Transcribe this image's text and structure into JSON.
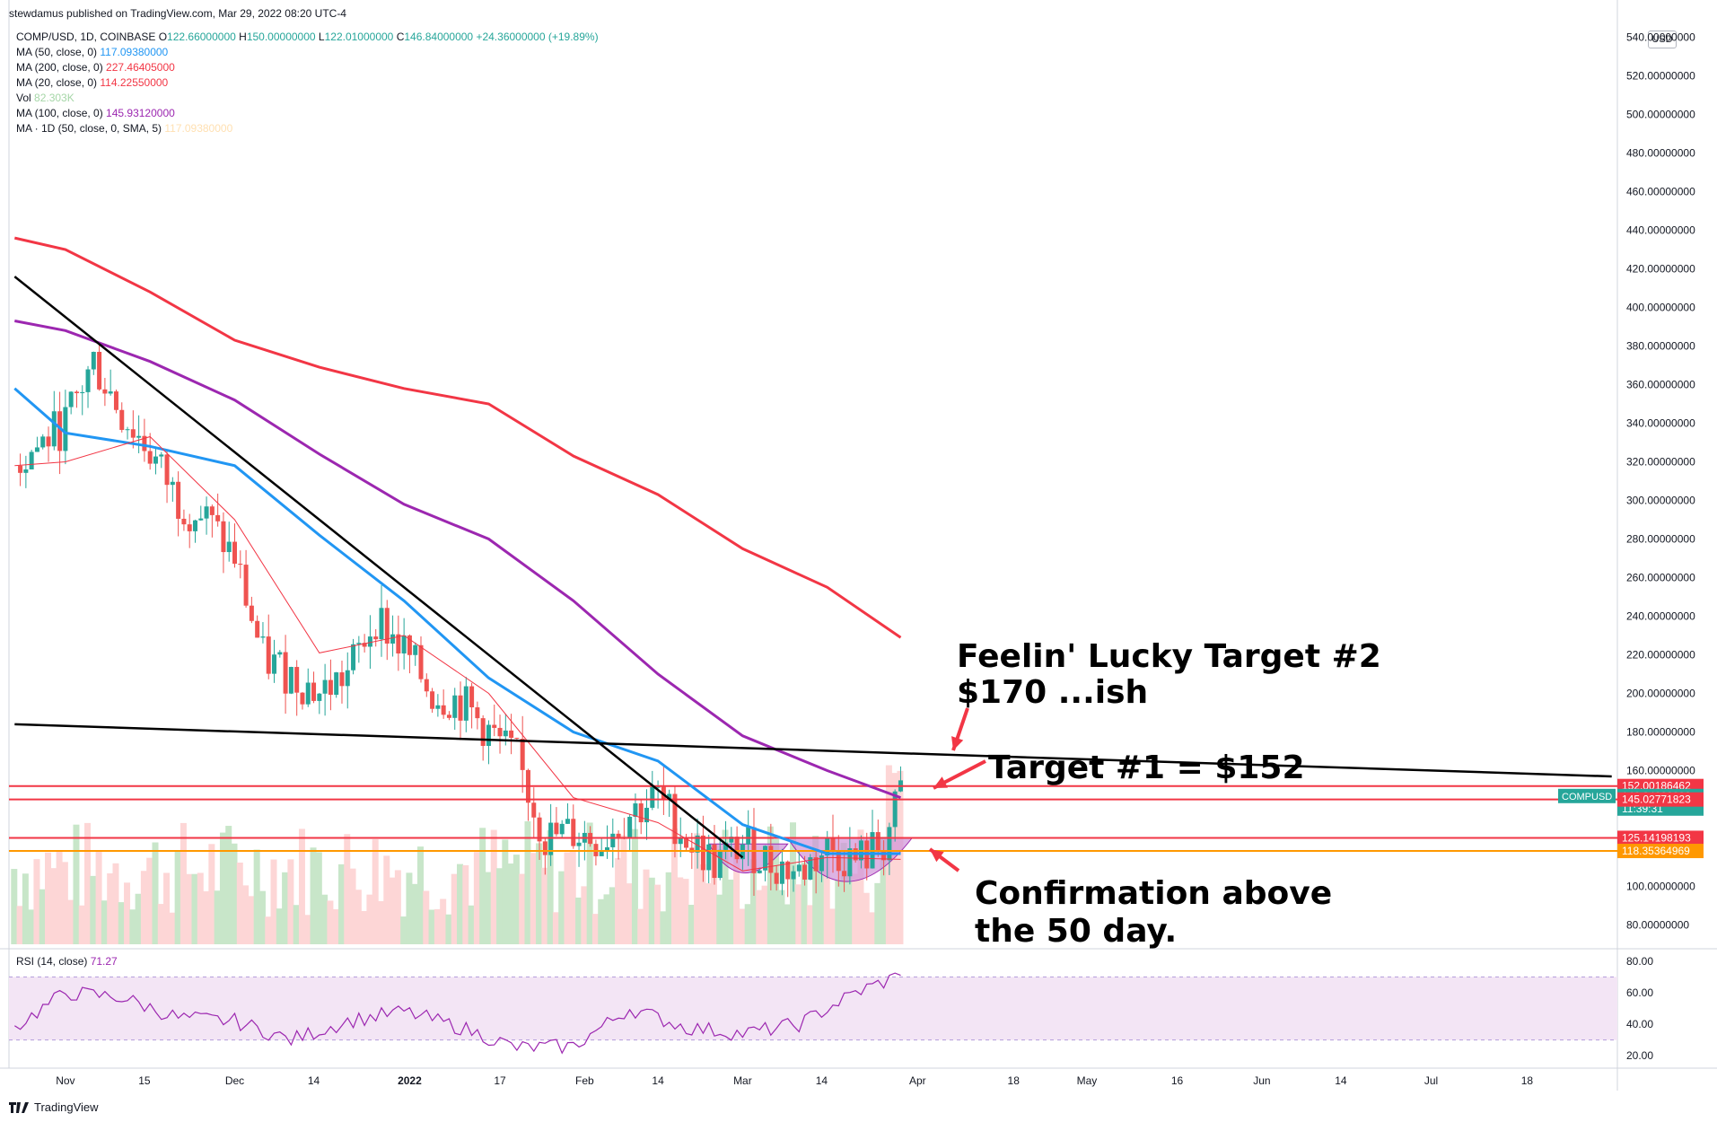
{
  "publisher": "stewdamus published on TradingView.com, Mar 29, 2022 08:20 UTC-4",
  "currency": "USD",
  "footer": {
    "brand": "TradingView"
  },
  "legend": [
    {
      "key": "COMP/USD, 1D, COINBASE",
      "ohlc": [
        {
          "k": "O",
          "v": "122.66000000"
        },
        {
          "k": "H",
          "v": "150.00000000"
        },
        {
          "k": "L",
          "v": "122.01000000"
        },
        {
          "k": "C",
          "v": "146.84000000"
        }
      ],
      "change": "+24.36000000 (+19.89%)",
      "color": "#26a69a"
    },
    {
      "key": "MA (50, close, 0)",
      "value": "117.09380000",
      "color": "#2196f3"
    },
    {
      "key": "MA (200, close, 0)",
      "value": "227.46405000",
      "color": "#f23645"
    },
    {
      "key": "MA (20, close, 0)",
      "value": "114.22550000",
      "color": "#f23645"
    },
    {
      "key": "Vol",
      "value": "82.303K",
      "color": "#a5d6a7"
    },
    {
      "key": "MA (100, close, 0)",
      "value": "145.93120000",
      "color": "#9c27b0"
    },
    {
      "key": "MA · 1D (50, close, 0, SMA, 5)",
      "value": "117.09380000",
      "color": "#ffe0b2"
    }
  ],
  "rsi": {
    "label": "RSI (14, close)",
    "value": "71.27",
    "color": "#9c27b0",
    "ticks": [
      "80.00",
      "60.00",
      "40.00",
      "20.00"
    ]
  },
  "annotations": {
    "target2": "Feelin' Lucky Target #2\n$170 ...ish",
    "target1": "Target #1 = $152",
    "confirm": "Confirmation above\nthe 50 day."
  },
  "price_tags": [
    {
      "label": "152.00186462",
      "bg": "#f23645",
      "price": 152.0
    },
    {
      "label": "146.84000000",
      "sub": "11:39:31",
      "bg": "#26a69a",
      "price": 146.84,
      "name": "COMPUSD"
    },
    {
      "label": "145.02771823",
      "bg": "#f23645",
      "price": 145.03
    },
    {
      "label": "125.14198193",
      "bg": "#f23645",
      "price": 125.14
    },
    {
      "label": "118.35364969",
      "bg": "#ff9800",
      "price": 118.35
    }
  ],
  "chart_data": {
    "type": "line",
    "title": "COMP/USD, 1D, COINBASE",
    "y_ticks": [
      "540.00000000",
      "520.00000000",
      "500.00000000",
      "480.00000000",
      "460.00000000",
      "440.00000000",
      "420.00000000",
      "400.00000000",
      "380.00000000",
      "360.00000000",
      "340.00000000",
      "320.00000000",
      "300.00000000",
      "280.00000000",
      "260.00000000",
      "240.00000000",
      "220.00000000",
      "200.00000000",
      "180.00000000",
      "160.00000000",
      "140.00000000",
      "120.00000000",
      "100.00000000",
      "80.00000000"
    ],
    "ylim": [
      70,
      550
    ],
    "x_ticks": [
      "Nov",
      "15",
      "Dec",
      "14",
      "2022",
      "17",
      "Feb",
      "14",
      "Mar",
      "14",
      "Apr",
      "18",
      "May",
      "16",
      "Jun",
      "14",
      "Jul",
      "18"
    ],
    "x_tick_days": [
      0,
      14,
      30,
      44,
      61,
      77,
      92,
      105,
      120,
      134,
      151,
      168,
      181,
      197,
      212,
      226,
      242,
      259
    ],
    "xlim_days": [
      -10,
      275
    ],
    "series": [
      {
        "name": "MA (200, close, 0)",
        "color": "#f23645",
        "points": [
          [
            -9,
            436
          ],
          [
            0,
            430
          ],
          [
            15,
            408
          ],
          [
            30,
            383
          ],
          [
            45,
            369
          ],
          [
            60,
            358
          ],
          [
            75,
            350
          ],
          [
            90,
            323
          ],
          [
            105,
            303
          ],
          [
            120,
            275
          ],
          [
            135,
            255
          ],
          [
            148,
            229
          ]
        ]
      },
      {
        "name": "MA (100, close, 0)",
        "color": "#9c27b0",
        "points": [
          [
            -9,
            393
          ],
          [
            0,
            388
          ],
          [
            15,
            372
          ],
          [
            30,
            352
          ],
          [
            45,
            324
          ],
          [
            60,
            298
          ],
          [
            75,
            280
          ],
          [
            90,
            248
          ],
          [
            105,
            210
          ],
          [
            120,
            178
          ],
          [
            135,
            160
          ],
          [
            148,
            146
          ]
        ]
      },
      {
        "name": "MA (50, close, 0)",
        "color": "#2196f3",
        "points": [
          [
            -9,
            358
          ],
          [
            0,
            335
          ],
          [
            15,
            328
          ],
          [
            30,
            318
          ],
          [
            45,
            282
          ],
          [
            60,
            248
          ],
          [
            75,
            208
          ],
          [
            90,
            180
          ],
          [
            105,
            165
          ],
          [
            120,
            132
          ],
          [
            135,
            117
          ],
          [
            148,
            117
          ]
        ]
      },
      {
        "name": "MA (20, close, 0)",
        "color": "#f23645",
        "points": [
          [
            -9,
            318
          ],
          [
            0,
            320
          ],
          [
            15,
            333
          ],
          [
            30,
            290
          ],
          [
            45,
            221
          ],
          [
            60,
            230
          ],
          [
            75,
            200
          ],
          [
            90,
            146
          ],
          [
            105,
            133
          ],
          [
            120,
            108
          ],
          [
            135,
            115
          ],
          [
            148,
            114
          ]
        ]
      },
      {
        "name": "COMP/USD close",
        "color": "#131722",
        "points": [
          [
            -9,
            318
          ],
          [
            0,
            340
          ],
          [
            5,
            372
          ],
          [
            10,
            345
          ],
          [
            15,
            325
          ],
          [
            20,
            300
          ],
          [
            25,
            290
          ],
          [
            30,
            270
          ],
          [
            35,
            218
          ],
          [
            40,
            210
          ],
          [
            45,
            200
          ],
          [
            50,
            210
          ],
          [
            55,
            240
          ],
          [
            60,
            222
          ],
          [
            65,
            200
          ],
          [
            70,
            196
          ],
          [
            75,
            180
          ],
          [
            80,
            165
          ],
          [
            85,
            125
          ],
          [
            90,
            128
          ],
          [
            95,
            124
          ],
          [
            100,
            138
          ],
          [
            105,
            146
          ],
          [
            110,
            125
          ],
          [
            115,
            112
          ],
          [
            120,
            122
          ],
          [
            125,
            112
          ],
          [
            130,
            107
          ],
          [
            135,
            120
          ],
          [
            140,
            113
          ],
          [
            145,
            122
          ],
          [
            148,
            147
          ]
        ]
      }
    ],
    "trendlines": [
      {
        "name": "descending resistance",
        "points": [
          [
            -9,
            416
          ],
          [
            120,
            115
          ]
        ]
      },
      {
        "name": "long trendline",
        "points": [
          [
            -9,
            184
          ],
          [
            274,
            157
          ]
        ]
      }
    ],
    "levels": [
      152.0,
      145.03,
      125.14,
      118.35
    ],
    "rsi_points": [
      [
        -9,
        38
      ],
      [
        0,
        60
      ],
      [
        10,
        57
      ],
      [
        20,
        44
      ],
      [
        30,
        42
      ],
      [
        40,
        30
      ],
      [
        50,
        42
      ],
      [
        60,
        48
      ],
      [
        70,
        38
      ],
      [
        80,
        25
      ],
      [
        90,
        26
      ],
      [
        100,
        50
      ],
      [
        110,
        38
      ],
      [
        120,
        34
      ],
      [
        130,
        40
      ],
      [
        140,
        60
      ],
      [
        148,
        71
      ]
    ]
  }
}
